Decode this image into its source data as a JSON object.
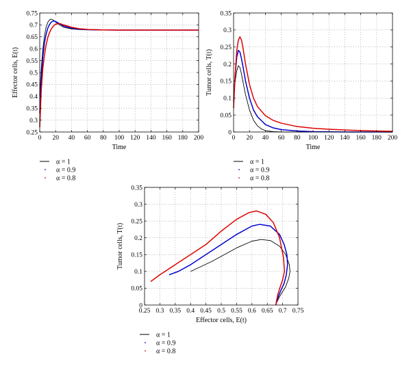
{
  "chart_data": [
    {
      "type": "line",
      "xlabel": "Time",
      "ylabel": "Effector cells, E(t)",
      "xlim": [
        0,
        200
      ],
      "ylim": [
        0.25,
        0.75
      ],
      "xticks": [
        "0",
        "20",
        "40",
        "60",
        "80",
        "100",
        "120",
        "140",
        "160",
        "180",
        "200"
      ],
      "yticks": [
        "0.25",
        "0.3",
        "0.35",
        "0.4",
        "0.45",
        "0.5",
        "0.55",
        "0.6",
        "0.65",
        "0.7",
        "0.75"
      ],
      "grid": true,
      "legend_position": "below",
      "series": [
        {
          "name": "α = 1",
          "color": "#000000",
          "x": [
            0,
            2,
            4,
            6,
            8,
            10,
            12,
            14,
            16,
            18,
            20,
            25,
            30,
            40,
            50,
            60,
            80,
            100,
            150,
            200
          ],
          "y": [
            0.4,
            0.52,
            0.6,
            0.655,
            0.69,
            0.71,
            0.72,
            0.724,
            0.722,
            0.718,
            0.712,
            0.7,
            0.69,
            0.683,
            0.68,
            0.679,
            0.678,
            0.678,
            0.678,
            0.678
          ]
        },
        {
          "name": "α = 0.9",
          "color": "#0000cc",
          "x": [
            0,
            2,
            4,
            6,
            8,
            10,
            12,
            14,
            16,
            18,
            20,
            25,
            30,
            40,
            50,
            60,
            80,
            100,
            150,
            200
          ],
          "y": [
            0.33,
            0.48,
            0.57,
            0.625,
            0.66,
            0.685,
            0.7,
            0.71,
            0.715,
            0.716,
            0.714,
            0.705,
            0.695,
            0.686,
            0.682,
            0.68,
            0.679,
            0.678,
            0.678,
            0.678
          ]
        },
        {
          "name": "α = 0.8",
          "color": "#dd0000",
          "x": [
            0,
            2,
            4,
            6,
            8,
            10,
            12,
            14,
            16,
            18,
            20,
            25,
            30,
            40,
            50,
            60,
            80,
            100,
            150,
            200
          ],
          "y": [
            0.27,
            0.43,
            0.52,
            0.575,
            0.615,
            0.645,
            0.665,
            0.68,
            0.69,
            0.698,
            0.703,
            0.706,
            0.7,
            0.69,
            0.684,
            0.681,
            0.679,
            0.678,
            0.678,
            0.678
          ]
        }
      ]
    },
    {
      "type": "line",
      "xlabel": "Time",
      "ylabel": "Tumor cells, T(t)",
      "xlim": [
        0,
        200
      ],
      "ylim": [
        0,
        0.35
      ],
      "xticks": [
        "0",
        "20",
        "40",
        "60",
        "80",
        "100",
        "120",
        "140",
        "160",
        "180",
        "200"
      ],
      "yticks": [
        "0",
        "0.05",
        "0.1",
        "0.15",
        "0.2",
        "0.25",
        "0.3",
        "0.35"
      ],
      "grid": true,
      "legend_position": "below",
      "series": [
        {
          "name": "α = 1",
          "color": "#000000",
          "x": [
            0,
            2,
            4,
            6,
            8,
            10,
            12,
            15,
            20,
            25,
            30,
            35,
            40,
            50,
            60,
            80,
            100
          ],
          "y": [
            0.1,
            0.15,
            0.18,
            0.195,
            0.19,
            0.17,
            0.145,
            0.11,
            0.065,
            0.035,
            0.018,
            0.009,
            0.004,
            0.001,
            0.0,
            0.0,
            0.0
          ]
        },
        {
          "name": "α = 0.9",
          "color": "#0000cc",
          "x": [
            0,
            2,
            4,
            6,
            8,
            10,
            12,
            15,
            20,
            25,
            30,
            40,
            50,
            60,
            80,
            100,
            150,
            200
          ],
          "y": [
            0.09,
            0.17,
            0.22,
            0.24,
            0.235,
            0.215,
            0.19,
            0.15,
            0.1,
            0.065,
            0.045,
            0.022,
            0.012,
            0.007,
            0.003,
            0.001,
            0.0,
            0.0
          ]
        },
        {
          "name": "α = 0.8",
          "color": "#dd0000",
          "x": [
            0,
            2,
            4,
            6,
            8,
            10,
            12,
            15,
            20,
            25,
            30,
            40,
            50,
            60,
            80,
            100,
            120,
            150,
            180,
            200
          ],
          "y": [
            0.07,
            0.17,
            0.24,
            0.27,
            0.28,
            0.27,
            0.245,
            0.2,
            0.14,
            0.1,
            0.075,
            0.048,
            0.034,
            0.026,
            0.016,
            0.011,
            0.008,
            0.005,
            0.003,
            0.002
          ]
        }
      ]
    },
    {
      "type": "line",
      "xlabel": "Effector cells, E(t)",
      "ylabel": "Tumor cells, T(t)",
      "xlim": [
        0.25,
        0.75
      ],
      "ylim": [
        0,
        0.35
      ],
      "xticks": [
        "0.25",
        "0.3",
        "0.35",
        "0.4",
        "0.45",
        "0.5",
        "0.55",
        "0.6",
        "0.65",
        "0.7",
        "0.75"
      ],
      "yticks": [
        "0",
        "0.05",
        "0.1",
        "0.15",
        "0.2",
        "0.25",
        "0.3",
        "0.35"
      ],
      "grid": true,
      "legend_position": "below",
      "series": [
        {
          "name": "α = 1",
          "color": "#000000",
          "x": [
            0.4,
            0.47,
            0.55,
            0.6,
            0.63,
            0.66,
            0.69,
            0.71,
            0.722,
            0.724,
            0.72,
            0.71,
            0.7,
            0.69,
            0.683,
            0.679,
            0.678
          ],
          "y": [
            0.1,
            0.13,
            0.17,
            0.19,
            0.195,
            0.192,
            0.175,
            0.15,
            0.12,
            0.1,
            0.08,
            0.055,
            0.04,
            0.025,
            0.012,
            0.004,
            0.0
          ]
        },
        {
          "name": "α = 0.9",
          "color": "#0000cc",
          "x": [
            0.33,
            0.36,
            0.4,
            0.45,
            0.5,
            0.55,
            0.6,
            0.625,
            0.66,
            0.69,
            0.705,
            0.714,
            0.716,
            0.712,
            0.705,
            0.695,
            0.686,
            0.68,
            0.678
          ],
          "y": [
            0.09,
            0.1,
            0.12,
            0.15,
            0.18,
            0.21,
            0.235,
            0.24,
            0.235,
            0.21,
            0.18,
            0.15,
            0.12,
            0.09,
            0.065,
            0.045,
            0.025,
            0.008,
            0.0
          ]
        },
        {
          "name": "α = 0.8",
          "color": "#dd0000",
          "x": [
            0.27,
            0.3,
            0.35,
            0.4,
            0.45,
            0.5,
            0.55,
            0.59,
            0.615,
            0.645,
            0.67,
            0.69,
            0.703,
            0.706,
            0.7,
            0.69,
            0.684,
            0.68,
            0.678
          ],
          "y": [
            0.07,
            0.09,
            0.12,
            0.15,
            0.18,
            0.22,
            0.255,
            0.275,
            0.28,
            0.27,
            0.245,
            0.2,
            0.14,
            0.1,
            0.075,
            0.048,
            0.03,
            0.012,
            0.0
          ]
        }
      ]
    }
  ]
}
